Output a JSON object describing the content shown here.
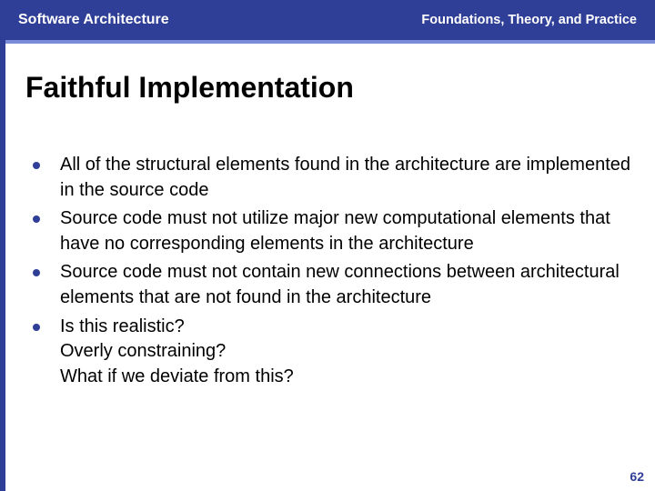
{
  "colors": {
    "header_bg": "#2f3e96",
    "header_text": "#ffffff",
    "underline": "#7a8bd8",
    "left_border": "#2f3e96",
    "bullet": "#2f3e96",
    "page_num": "#2f3e96",
    "title": "#000000",
    "body": "#000000",
    "background": "#ffffff"
  },
  "header": {
    "left": "Software Architecture",
    "right": "Foundations, Theory, and Practice"
  },
  "title": "Faithful Implementation",
  "bullets": [
    "All of the structural elements found in the architecture are implemented in the source code",
    "Source code must not utilize major new computational elements that have no corresponding elements in the architecture",
    "Source code must not contain new connections between architectural elements that are not found in the architecture",
    "Is this realistic?\nOverly constraining?\nWhat if we deviate from this?"
  ],
  "page_number": "62",
  "typography": {
    "header_left_size": 16,
    "header_right_size": 14.5,
    "title_size": 32,
    "body_size": 20,
    "page_num_size": 14
  }
}
